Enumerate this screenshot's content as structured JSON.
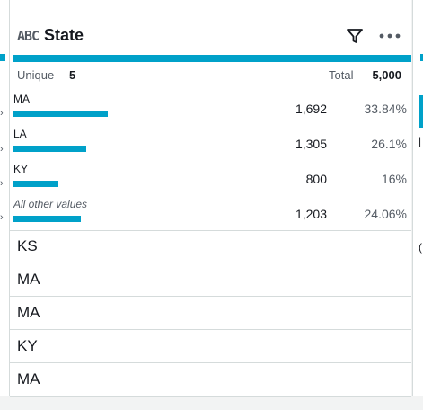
{
  "column": {
    "type_label": "ABC",
    "name": "State"
  },
  "stats": {
    "unique_label": "Unique",
    "unique_value": "5",
    "total_label": "Total",
    "total_value": "5,000"
  },
  "distribution": [
    {
      "label": "MA",
      "count": "1,692",
      "percent": "33.84%",
      "fraction": 0.3384
    },
    {
      "label": "LA",
      "count": "1,305",
      "percent": "26.1%",
      "fraction": 0.261
    },
    {
      "label": "KY",
      "count": "800",
      "percent": "16%",
      "fraction": 0.16
    },
    {
      "label": "All other values",
      "count": "1,203",
      "percent": "24.06%",
      "fraction": 0.2406
    }
  ],
  "rows": [
    "KS",
    "MA",
    "MA",
    "KY",
    "MA"
  ],
  "colors": {
    "accent": "#00a1c9",
    "text": "#16191f",
    "muted": "#545b64",
    "border": "#d5dbdb",
    "background": "#f2f3f3"
  },
  "icons": {
    "type": "abc-string-type-icon",
    "filter": "filter-icon",
    "more": "more-options-icon"
  }
}
